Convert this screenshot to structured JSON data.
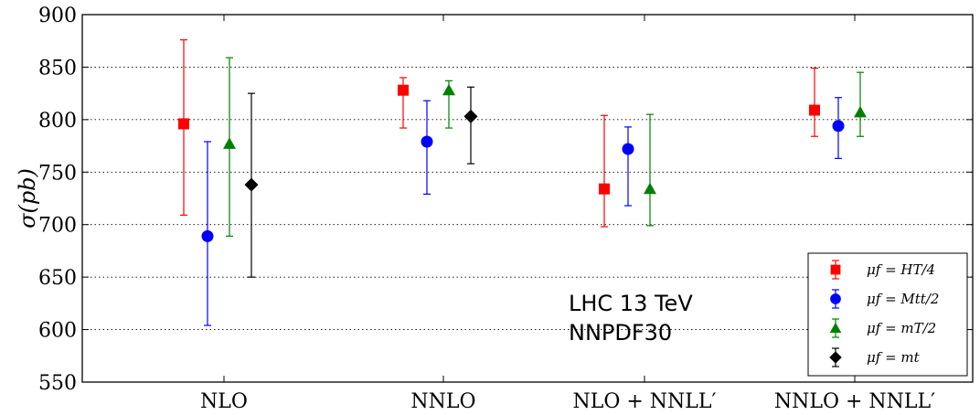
{
  "chart_data": {
    "type": "scatter",
    "title": "",
    "xlabel": "",
    "ylabel": "σ(pb)",
    "ylim": [
      550,
      900
    ],
    "yticks": [
      550,
      600,
      650,
      700,
      750,
      800,
      850,
      900
    ],
    "grid": "y-dotted",
    "legend_position": "lower-right",
    "categories": [
      "NLO",
      "NNLO",
      "NLO + NNLL′",
      "NNLO + NNLL′"
    ],
    "annotation": [
      "LHC 13 TeV",
      "NNPDF30"
    ],
    "series": [
      {
        "name": "μf = HT/4",
        "color": "#ff0000",
        "marker": "square",
        "points": [
          {
            "category": "NLO",
            "value": 796,
            "low": 709,
            "high": 876
          },
          {
            "category": "NNLO",
            "value": 828,
            "low": 792,
            "high": 840
          },
          {
            "category": "NLO + NNLL′",
            "value": 734,
            "low": 698,
            "high": 804
          },
          {
            "category": "NNLO + NNLL′",
            "value": 809,
            "low": 784,
            "high": 849
          }
        ]
      },
      {
        "name": "μf = Mtt/2",
        "color": "#0000ff",
        "marker": "circle",
        "points": [
          {
            "category": "NLO",
            "value": 689,
            "low": 604,
            "high": 779
          },
          {
            "category": "NNLO",
            "value": 779,
            "low": 729,
            "high": 818
          },
          {
            "category": "NLO + NNLL′",
            "value": 772,
            "low": 718,
            "high": 793
          },
          {
            "category": "NNLO + NNLL′",
            "value": 794,
            "low": 763,
            "high": 821
          }
        ]
      },
      {
        "name": "μf = mT/2",
        "color": "#008000",
        "marker": "triangle",
        "points": [
          {
            "category": "NLO",
            "value": 777,
            "low": 689,
            "high": 859
          },
          {
            "category": "NNLO",
            "value": 828,
            "low": 792,
            "high": 837
          },
          {
            "category": "NLO + NNLL′",
            "value": 734,
            "low": 699,
            "high": 805
          },
          {
            "category": "NNLO + NNLL′",
            "value": 807,
            "low": 784,
            "high": 845
          }
        ]
      },
      {
        "name": "μf = mt",
        "color": "#000000",
        "marker": "diamond",
        "points": [
          {
            "category": "NLO",
            "value": 738,
            "low": 650,
            "high": 825
          },
          {
            "category": "NNLO",
            "value": 803,
            "low": 758,
            "high": 831
          }
        ]
      }
    ]
  }
}
